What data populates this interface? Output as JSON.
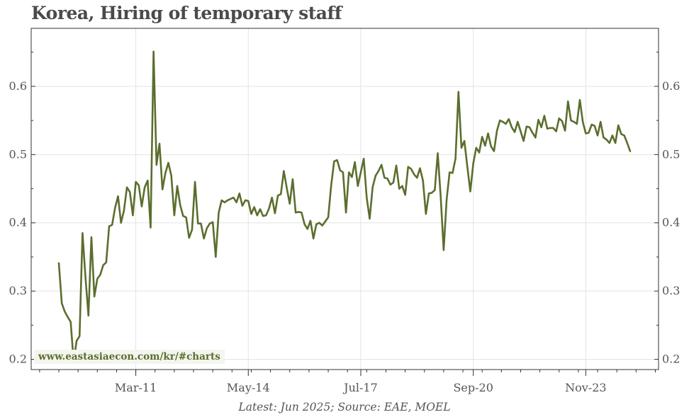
{
  "chart_data": {
    "type": "line",
    "title": "Korea, Hiring of temporary staff",
    "source": "Latest: Jun 2025; Source: EAE, MOEL",
    "watermark": "www.eastasiaecon.com/kr/#charts",
    "x_start": "Jan-2009",
    "x_end": "Jun-2025",
    "x_tick_labels": [
      "Mar-11",
      "May-14",
      "Jul-17",
      "Sep-20",
      "Nov-23"
    ],
    "ylim": [
      0.185,
      0.685
    ],
    "y_ticks": [
      0.2,
      0.3,
      0.4,
      0.5,
      0.6
    ],
    "y_tick_labels": [
      "0.2",
      "0.3",
      "0.4",
      "0.5",
      "0.6"
    ],
    "grid": true,
    "line_color": "#5b6e2e",
    "series": [
      {
        "values": [
          0.341,
          0.282,
          0.27,
          0.262,
          0.255,
          0.197,
          0.227,
          0.234,
          0.385,
          0.32,
          0.264,
          0.379,
          0.292,
          0.318,
          0.324,
          0.338,
          0.342,
          0.395,
          0.397,
          0.422,
          0.439,
          0.4,
          0.418,
          0.452,
          0.445,
          0.411,
          0.46,
          0.455,
          0.424,
          0.452,
          0.462,
          0.393,
          0.651,
          0.485,
          0.516,
          0.449,
          0.473,
          0.488,
          0.469,
          0.411,
          0.454,
          0.426,
          0.41,
          0.408,
          0.378,
          0.39,
          0.46,
          0.399,
          0.399,
          0.377,
          0.392,
          0.399,
          0.401,
          0.35,
          0.415,
          0.433,
          0.43,
          0.433,
          0.435,
          0.437,
          0.43,
          0.443,
          0.425,
          0.433,
          0.432,
          0.413,
          0.423,
          0.411,
          0.42,
          0.41,
          0.411,
          0.421,
          0.437,
          0.414,
          0.44,
          0.442,
          0.476,
          0.451,
          0.428,
          0.464,
          0.415,
          0.416,
          0.415,
          0.398,
          0.391,
          0.403,
          0.377,
          0.398,
          0.4,
          0.396,
          0.402,
          0.408,
          0.455,
          0.49,
          0.492,
          0.477,
          0.474,
          0.415,
          0.474,
          0.467,
          0.489,
          0.454,
          0.474,
          0.494,
          0.437,
          0.406,
          0.452,
          0.469,
          0.476,
          0.485,
          0.466,
          0.465,
          0.456,
          0.459,
          0.484,
          0.45,
          0.454,
          0.441,
          0.482,
          0.479,
          0.471,
          0.466,
          0.48,
          0.462,
          0.413,
          0.443,
          0.444,
          0.448,
          0.502,
          0.438,
          0.36,
          0.434,
          0.474,
          0.473,
          0.494,
          0.592,
          0.51,
          0.52,
          0.482,
          0.446,
          0.487,
          0.51,
          0.503,
          0.526,
          0.513,
          0.531,
          0.512,
          0.505,
          0.535,
          0.55,
          0.548,
          0.545,
          0.552,
          0.54,
          0.533,
          0.548,
          0.534,
          0.52,
          0.541,
          0.54,
          0.532,
          0.525,
          0.551,
          0.54,
          0.557,
          0.538,
          0.539,
          0.539,
          0.534,
          0.553,
          0.549,
          0.535,
          0.578,
          0.55,
          0.548,
          0.545,
          0.58,
          0.548,
          0.531,
          0.532,
          0.544,
          0.542,
          0.528,
          0.548,
          0.525,
          0.522,
          0.517,
          0.528,
          0.517,
          0.543,
          0.53,
          0.528,
          0.517,
          0.505
        ]
      }
    ]
  }
}
